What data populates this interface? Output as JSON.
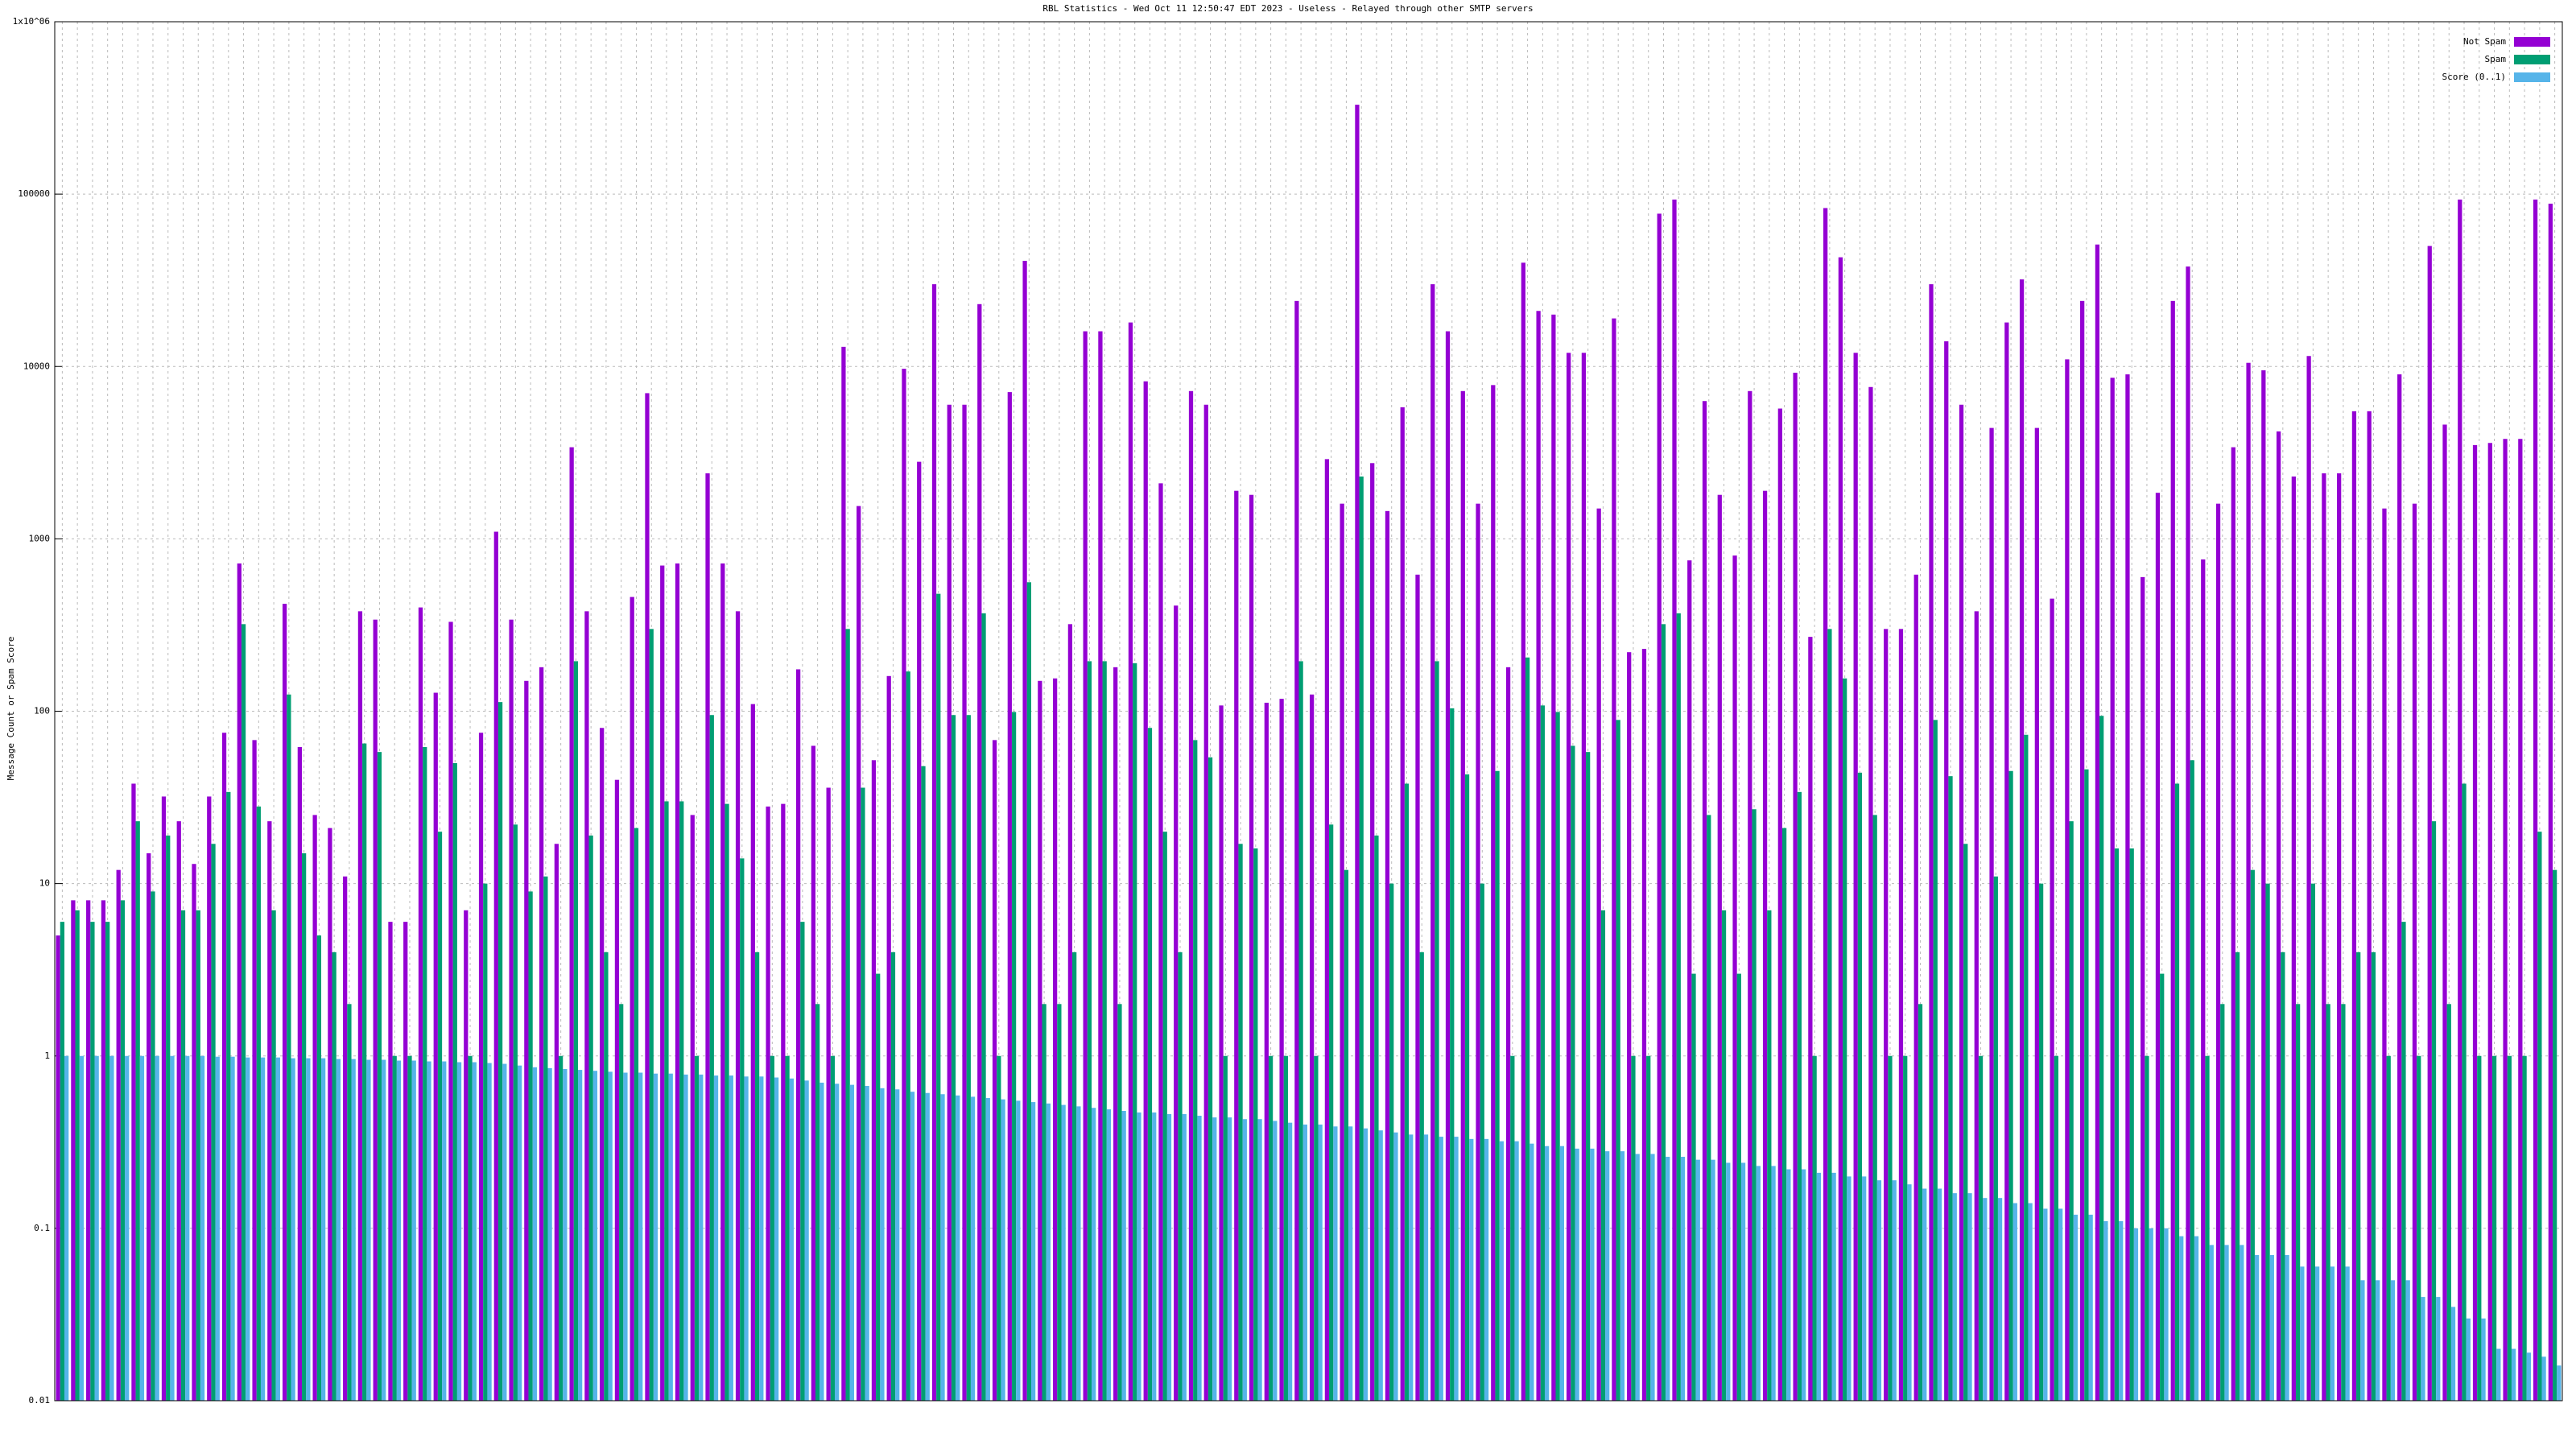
{
  "chart_data": {
    "type": "bar",
    "title": "RBL Statistics - Wed Oct 11 12:50:47 EDT 2023 - Useless - Relayed through other SMTP servers",
    "y_label": "Message Count or Spam Score",
    "log_scale": true,
    "grid": true,
    "legend": "top-right",
    "ylim": [
      0.01,
      1000000
    ],
    "yticks": [
      0.01,
      0.1,
      1,
      10,
      100,
      1000,
      10000,
      100000,
      {
        "value": 1000000,
        "label": "1x10^06"
      }
    ],
    "series": [
      {
        "name": "Not Spam",
        "color": "#9400d3",
        "values": [
          5,
          8,
          8,
          8,
          12,
          38,
          15,
          32,
          23,
          13,
          32,
          75,
          720,
          68,
          23,
          420,
          62,
          25,
          21,
          11,
          380,
          340,
          6,
          6,
          400,
          128,
          330,
          7,
          75,
          1100,
          340,
          150,
          180,
          17,
          3400,
          380,
          80,
          40,
          460,
          7000,
          700,
          720,
          25,
          2400,
          720,
          380,
          110,
          28,
          29,
          175,
          63,
          36,
          13000,
          1550,
          52,
          160,
          9700,
          2800,
          30000,
          6000,
          6000,
          23000,
          68,
          7100,
          41000,
          150,
          155,
          320,
          16000,
          16000,
          180,
          18000,
          8200,
          2100,
          410,
          7200,
          6000,
          108,
          1900,
          1800,
          112,
          118,
          24000,
          125,
          2900,
          1600,
          330000,
          2750,
          1450,
          5800,
          620,
          30000,
          16000,
          7200,
          1600,
          7800,
          180,
          40000,
          21000,
          20000,
          12000,
          12000,
          1500,
          19000,
          220,
          230,
          77000,
          93000,
          750,
          6300,
          1800,
          800,
          7200,
          1900,
          5700,
          9200,
          270,
          83000,
          43000,
          12000,
          7600,
          300,
          300,
          620,
          30000,
          14000,
          6000,
          380,
          4400,
          18000,
          32000,
          4400,
          450,
          11000,
          24000,
          51000,
          8600,
          9000,
          600,
          1850,
          24000,
          38000,
          760,
          1600,
          3400,
          10500,
          9500,
          4200,
          2300,
          11500,
          2400,
          2400,
          5500,
          5500,
          1500,
          9000,
          1600,
          50000,
          4600,
          93000,
          3500,
          3600,
          3800,
          3800,
          93000,
          88000
        ]
      },
      {
        "name": "Spam",
        "color": "#009e73",
        "values": [
          6,
          7,
          6,
          6,
          8,
          23,
          9,
          19,
          7,
          7,
          17,
          34,
          320,
          28,
          7,
          125,
          15,
          5,
          4,
          2,
          65,
          58,
          1,
          1,
          62,
          20,
          50,
          1,
          10,
          113,
          22,
          9,
          11,
          1,
          195,
          19,
          4,
          2,
          21,
          300,
          30,
          30,
          1,
          95,
          29,
          14,
          4,
          1,
          1,
          6,
          2,
          1,
          300,
          36,
          3,
          4,
          170,
          48,
          480,
          95,
          95,
          370,
          1,
          99,
          560,
          2,
          2,
          4,
          195,
          195,
          2,
          190,
          80,
          20,
          4,
          68,
          54,
          1,
          17,
          16,
          1,
          1,
          195,
          1,
          22,
          12,
          2300,
          19,
          10,
          38,
          4,
          195,
          104,
          43,
          10,
          45,
          1,
          205,
          108,
          99,
          63,
          58,
          7,
          89,
          1,
          1,
          320,
          370,
          3,
          25,
          7,
          3,
          27,
          7,
          21,
          34,
          1,
          300,
          155,
          44,
          25,
          1,
          1,
          2,
          89,
          42,
          17,
          1,
          11,
          45,
          73,
          10,
          1,
          23,
          46,
          94,
          16,
          16,
          1,
          3,
          38,
          52,
          1,
          2,
          4,
          12,
          10,
          4,
          2,
          10,
          2,
          2,
          4,
          4,
          1,
          6,
          1,
          23,
          2,
          38,
          1,
          1,
          1,
          1,
          20,
          12
        ]
      },
      {
        "name": "Score (0..1)",
        "color": "#56b4e9",
        "values": [
          1,
          1,
          1,
          1,
          1,
          1,
          1,
          1,
          1,
          1,
          0.99,
          0.99,
          0.98,
          0.98,
          0.98,
          0.97,
          0.97,
          0.97,
          0.96,
          0.96,
          0.95,
          0.95,
          0.94,
          0.94,
          0.93,
          0.93,
          0.92,
          0.92,
          0.91,
          0.9,
          0.88,
          0.86,
          0.85,
          0.84,
          0.83,
          0.82,
          0.81,
          0.8,
          0.8,
          0.79,
          0.79,
          0.78,
          0.78,
          0.77,
          0.77,
          0.76,
          0.76,
          0.75,
          0.74,
          0.72,
          0.7,
          0.69,
          0.68,
          0.67,
          0.65,
          0.64,
          0.62,
          0.61,
          0.6,
          0.59,
          0.58,
          0.57,
          0.56,
          0.55,
          0.54,
          0.53,
          0.52,
          0.51,
          0.5,
          0.49,
          0.48,
          0.47,
          0.47,
          0.46,
          0.46,
          0.45,
          0.44,
          0.44,
          0.43,
          0.43,
          0.42,
          0.41,
          0.4,
          0.4,
          0.39,
          0.39,
          0.38,
          0.37,
          0.36,
          0.35,
          0.35,
          0.34,
          0.34,
          0.33,
          0.33,
          0.32,
          0.32,
          0.31,
          0.3,
          0.3,
          0.29,
          0.29,
          0.28,
          0.28,
          0.27,
          0.27,
          0.26,
          0.26,
          0.25,
          0.25,
          0.24,
          0.24,
          0.23,
          0.23,
          0.22,
          0.22,
          0.21,
          0.21,
          0.2,
          0.2,
          0.19,
          0.19,
          0.18,
          0.17,
          0.17,
          0.16,
          0.16,
          0.15,
          0.15,
          0.14,
          0.14,
          0.13,
          0.13,
          0.12,
          0.12,
          0.11,
          0.11,
          0.1,
          0.1,
          0.1,
          0.09,
          0.09,
          0.08,
          0.08,
          0.08,
          0.07,
          0.07,
          0.07,
          0.06,
          0.06,
          0.06,
          0.06,
          0.05,
          0.05,
          0.05,
          0.05,
          0.04,
          0.04,
          0.035,
          0.03,
          0.03,
          0.02,
          0.02,
          0.019,
          0.018,
          0.016
        ]
      }
    ]
  }
}
